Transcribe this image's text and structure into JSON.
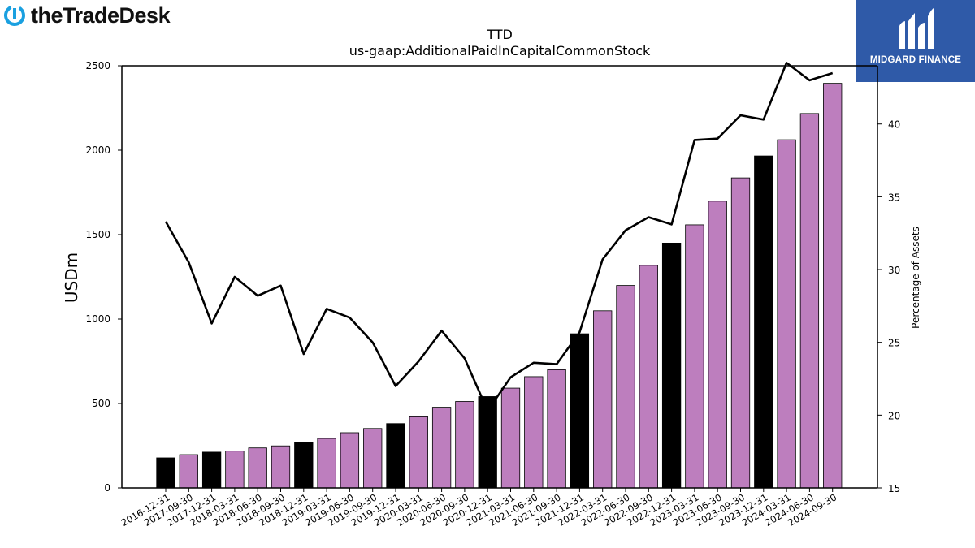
{
  "brand_left": "theTradeDesk",
  "brand_right": "MIDGARD FINANCE",
  "chart_data": {
    "type": "bar",
    "title": "TTD",
    "subtitle": "us-gaap:AdditionalPaidInCapitalCommonStock",
    "ylabel": "USDm",
    "y2label": "Percentage of Assets",
    "ylim": [
      0,
      2500
    ],
    "y2lim": [
      15,
      44
    ],
    "yticks": [
      0,
      500,
      1000,
      1500,
      2000,
      2500
    ],
    "y2ticks": [
      15,
      20,
      25,
      30,
      35,
      40
    ],
    "categories": [
      "2016-12-31",
      "2017-09-30",
      "2017-12-31",
      "2018-03-31",
      "2018-06-30",
      "2018-09-30",
      "2018-12-31",
      "2019-03-31",
      "2019-06-30",
      "2019-09-30",
      "2019-12-31",
      "2020-03-31",
      "2020-06-30",
      "2020-09-30",
      "2020-12-31",
      "2021-03-31",
      "2021-06-30",
      "2021-09-30",
      "2021-12-31",
      "2022-03-31",
      "2022-06-30",
      "2022-09-30",
      "2022-12-31",
      "2023-03-31",
      "2023-06-30",
      "2023-09-30",
      "2023-12-31",
      "2024-03-31",
      "2024-06-30",
      "2024-09-30"
    ],
    "series": [
      {
        "kind": "bar",
        "values": [
          178,
          197,
          212,
          218,
          237,
          249,
          270,
          293,
          327,
          352,
          381,
          421,
          478,
          512,
          541,
          591,
          659,
          700,
          913,
          1049,
          1199,
          1318,
          1450,
          1558,
          1698,
          1836,
          1966,
          2062,
          2217,
          2396
        ],
        "year_end": [
          true,
          false,
          true,
          false,
          false,
          false,
          true,
          false,
          false,
          false,
          true,
          false,
          false,
          false,
          true,
          false,
          false,
          false,
          true,
          false,
          false,
          false,
          true,
          false,
          false,
          false,
          true,
          false,
          false,
          false
        ]
      },
      {
        "kind": "line",
        "axis": "right",
        "values": [
          33.3,
          30.5,
          26.3,
          29.5,
          28.2,
          28.9,
          24.2,
          27.3,
          26.7,
          25.0,
          22.0,
          23.7,
          25.8,
          23.9,
          20.3,
          22.6,
          23.6,
          23.5,
          25.7,
          30.7,
          32.7,
          33.6,
          33.1,
          38.9,
          39.0,
          40.6,
          40.3,
          44.2,
          43.0,
          43.5
        ]
      }
    ],
    "colors": {
      "bar": "#bd7ebe",
      "bar_year_end": "#000000",
      "line": "#000000"
    }
  }
}
